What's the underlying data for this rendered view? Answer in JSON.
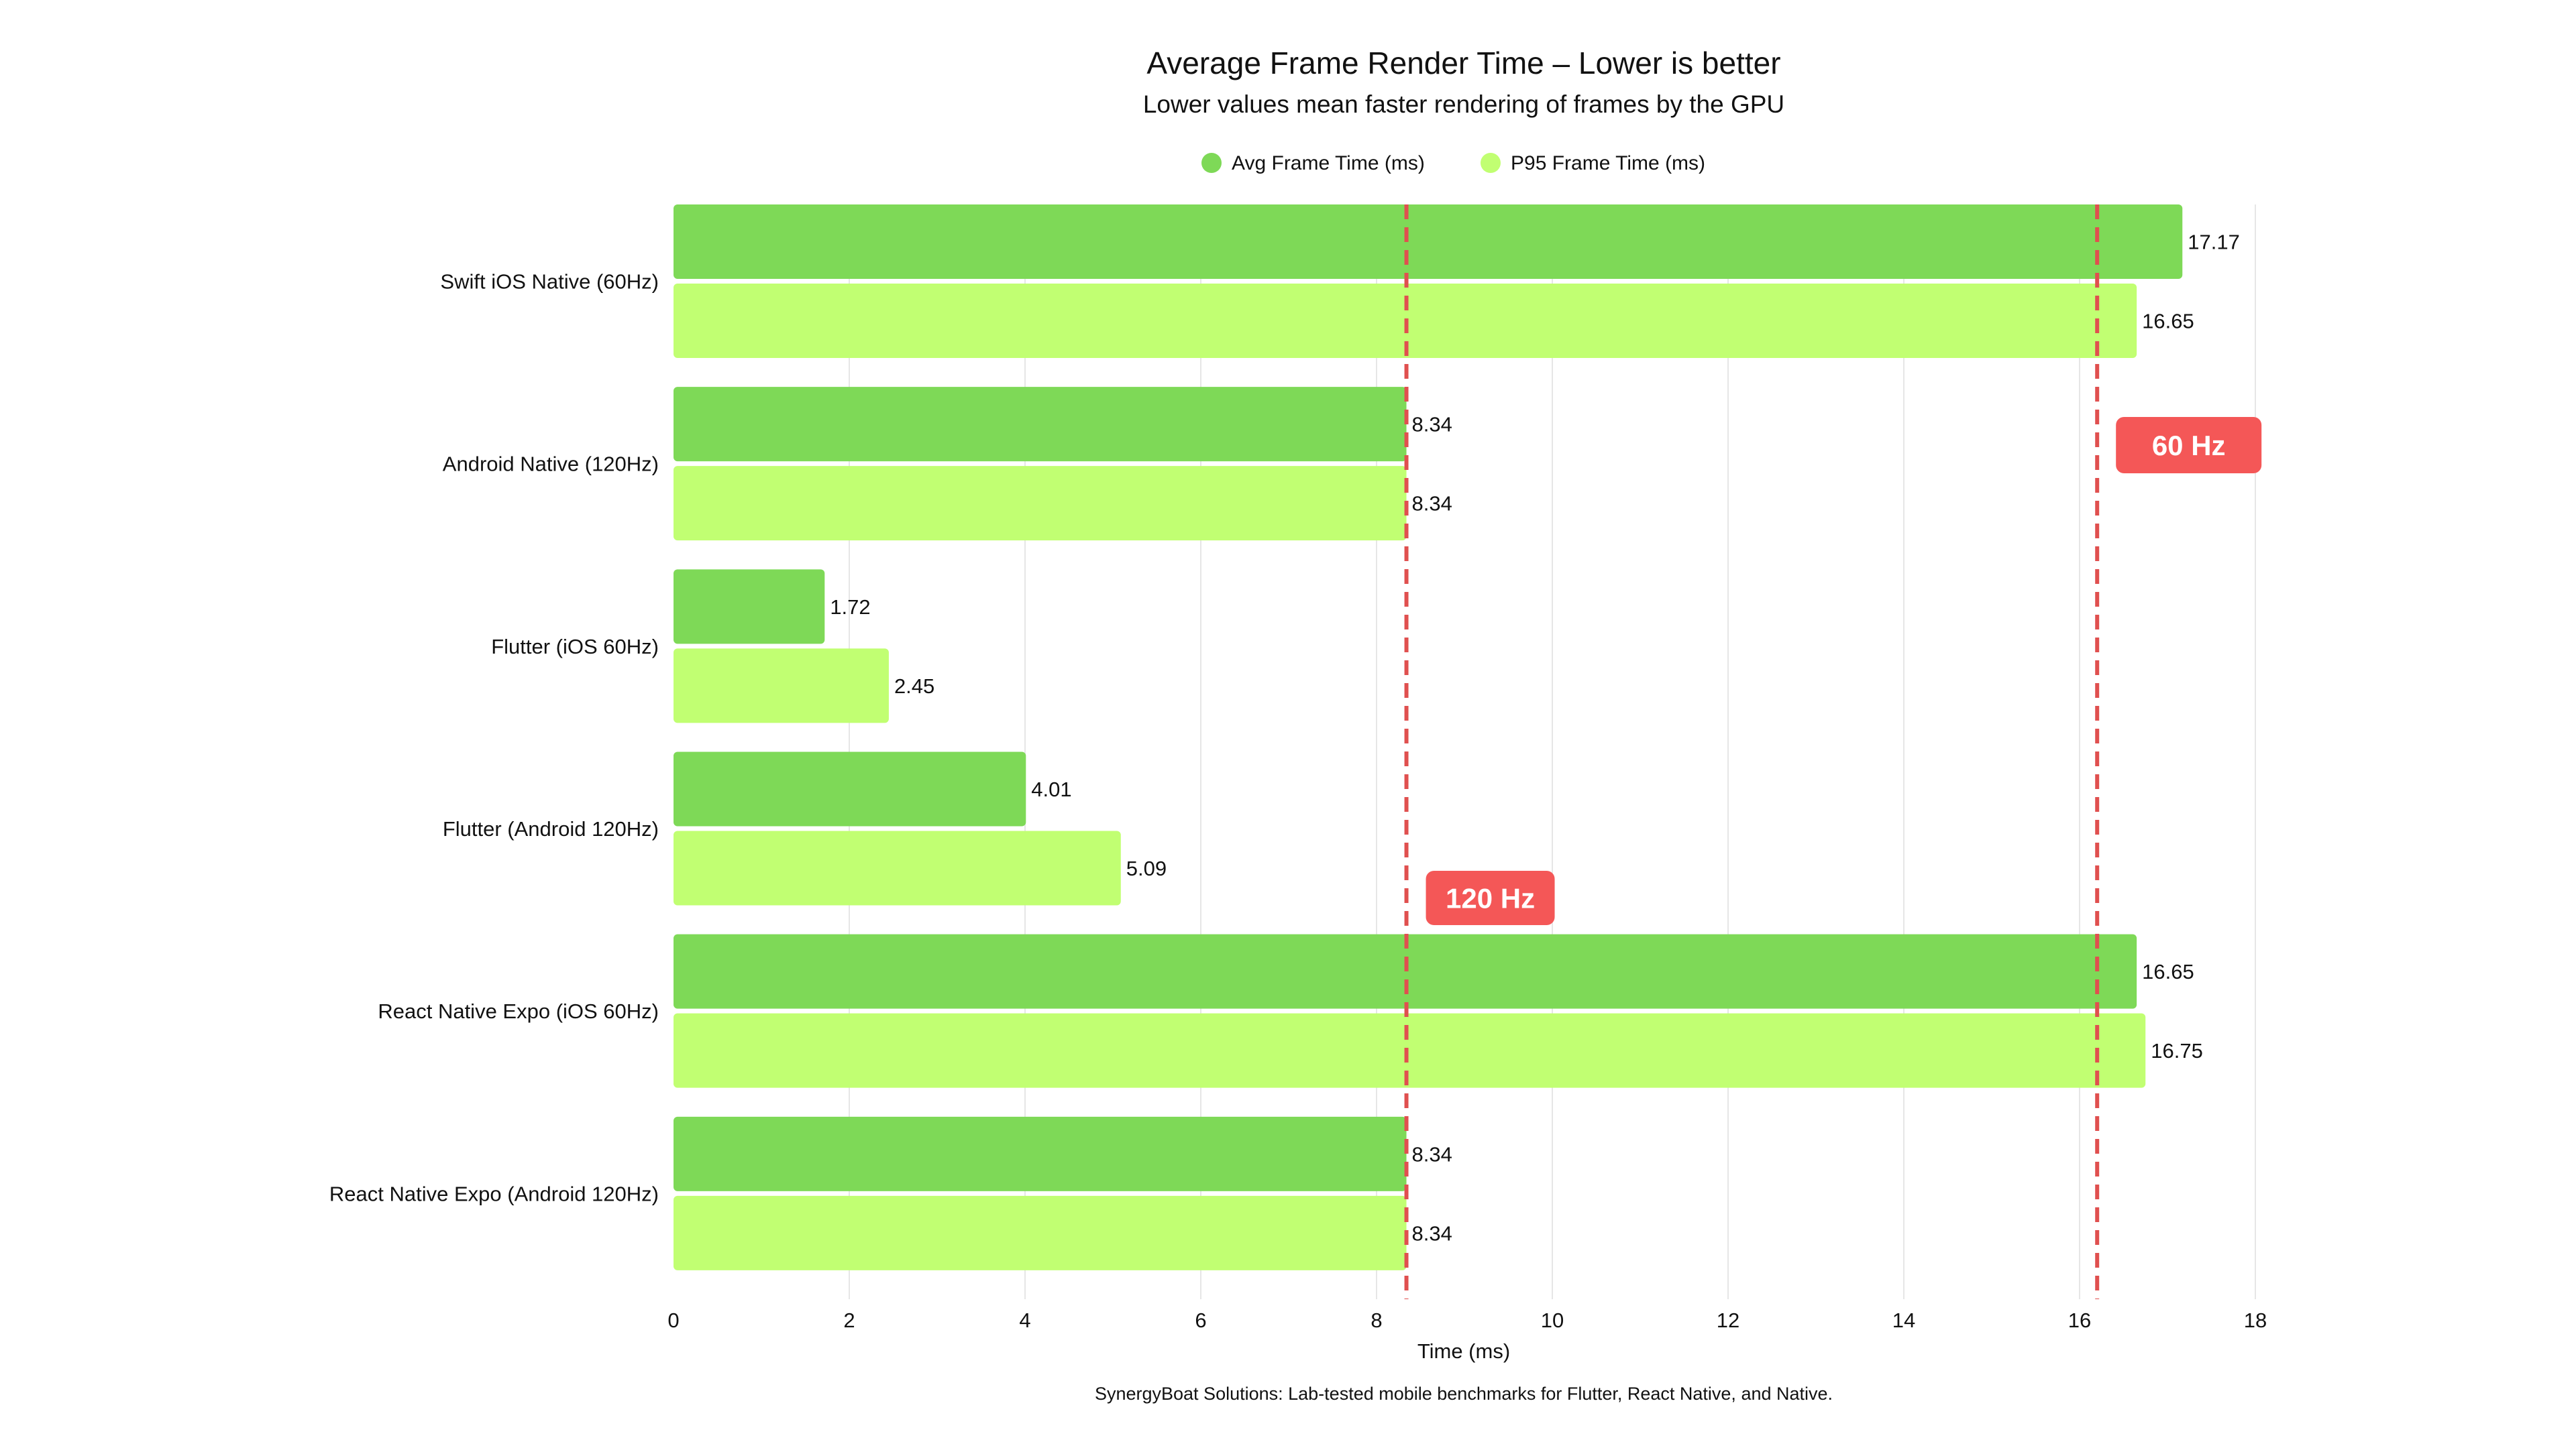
{
  "chart_data": {
    "type": "bar",
    "orientation": "horizontal",
    "title": "Average Frame Render Time – Lower is better",
    "subtitle": "Lower values mean faster rendering of frames by the GPU",
    "xlabel": "Time (ms)",
    "ylabel": "",
    "xlim": [
      0,
      18
    ],
    "xticks": [
      0,
      2,
      4,
      6,
      8,
      10,
      12,
      14,
      16,
      18
    ],
    "grid": "vertical",
    "legend_placement": "top-center",
    "categories": [
      "Swift iOS Native (60Hz)",
      "Android Native (120Hz)",
      "Flutter (iOS 60Hz)",
      "Flutter (Android 120Hz)",
      "React Native Expo (iOS 60Hz)",
      "React Native Expo (Android 120Hz)"
    ],
    "series": [
      {
        "name": "Avg Frame Time (ms)",
        "color": "#7ED957",
        "values": [
          17.17,
          8.34,
          1.72,
          4.01,
          16.65,
          8.34
        ]
      },
      {
        "name": "P95 Frame Time (ms)",
        "color": "#C1FF72",
        "values": [
          16.65,
          8.34,
          2.45,
          5.09,
          16.75,
          8.34
        ]
      }
    ],
    "reference_lines": [
      {
        "label": "120 Hz",
        "value": 8.34,
        "color": "#E0504F"
      },
      {
        "label": "60 Hz",
        "value": 16.2,
        "color": "#E0504F"
      }
    ],
    "footer": "SynergyBoat Solutions: Lab-tested mobile benchmarks for Flutter, React Native, and Native."
  }
}
